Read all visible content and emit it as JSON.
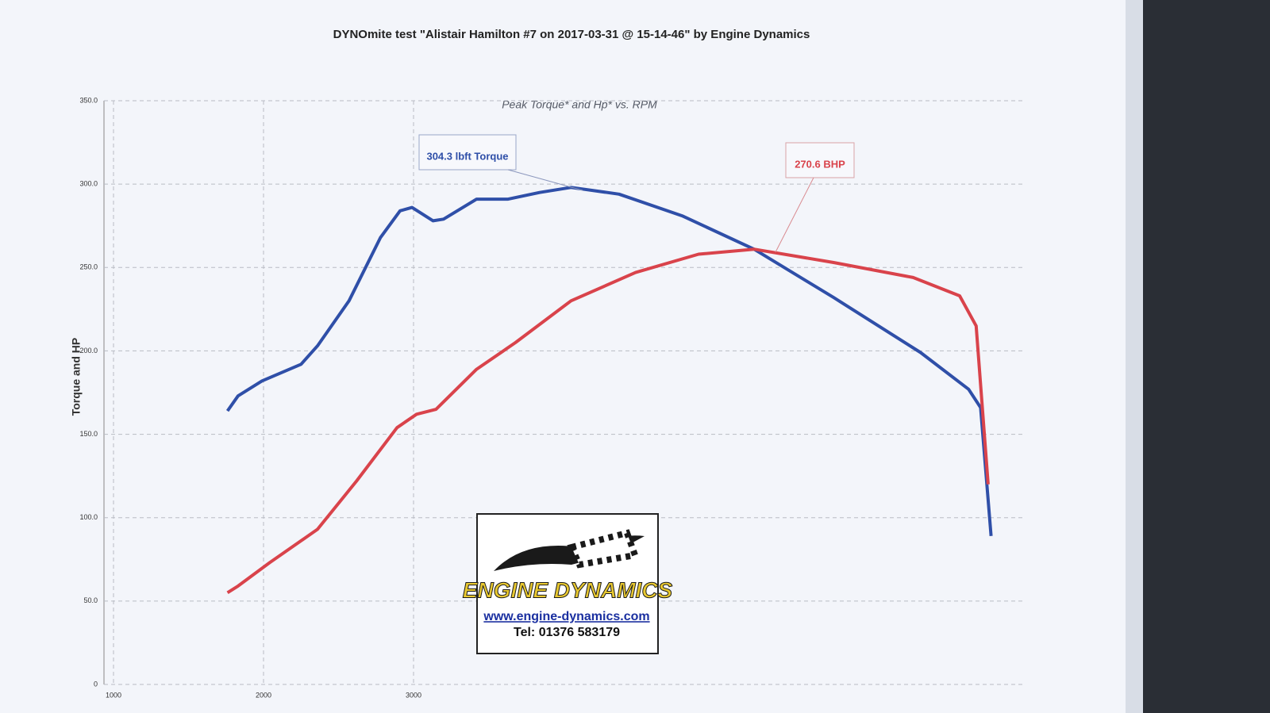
{
  "chart_data": {
    "type": "line",
    "title": "DYNOmite test \"Alistair Hamilton #7 on 2017-03-31 @ 15-14-46\" by Engine Dynamics",
    "subtitle": "Peak Torque* and Hp* vs. RPM",
    "y_label": "Torque and HP",
    "xlim": [
      1000,
      7000
    ],
    "xticks": [
      1000,
      2000,
      3000
    ],
    "ylim": [
      0,
      350
    ],
    "yticks": [
      0,
      {
        "value": 50,
        "label": "50.0"
      },
      {
        "value": 100,
        "label": "100.0"
      },
      {
        "value": 150,
        "label": "150.0"
      },
      {
        "value": 200,
        "label": "200.0"
      },
      {
        "value": 250,
        "label": "250.0"
      },
      {
        "value": 300,
        "label": "300.0"
      },
      {
        "value": 350,
        "label": "350.0"
      }
    ],
    "grid": true,
    "series": [
      {
        "color": "#2f4fa8",
        "x": [
          1760,
          1830,
          1990,
          2250,
          2360,
          2570,
          2780,
          2910,
          2990,
          3130,
          3200,
          3420,
          3630,
          3840,
          4050,
          4370,
          4790,
          5270,
          5800,
          6380,
          6700,
          6780,
          6850
        ],
        "values": [
          164,
          173,
          182,
          192,
          203,
          230,
          268,
          284,
          286,
          278,
          279,
          291,
          291,
          295,
          298,
          294,
          281,
          261,
          232,
          199,
          177,
          166,
          89
        ]
      },
      {
        "color": "#d9434b",
        "x": [
          1760,
          1830,
          2040,
          2360,
          2620,
          2890,
          3020,
          3150,
          3420,
          3680,
          4050,
          4480,
          4900,
          5270,
          5800,
          6330,
          6640,
          6750,
          6830
        ],
        "values": [
          55,
          59,
          73,
          93,
          122,
          154,
          162,
          165,
          189,
          205,
          230,
          247,
          258,
          261,
          253,
          244,
          233,
          215,
          120
        ]
      }
    ],
    "annotations": [
      "304.3 lbft Torque",
      "270.6 BHP"
    ],
    "logo": {
      "name": "ENGINE DYNAMICS",
      "url": "www.engine-dynamics.com",
      "phone": "Tel: 01376 583179"
    }
  }
}
